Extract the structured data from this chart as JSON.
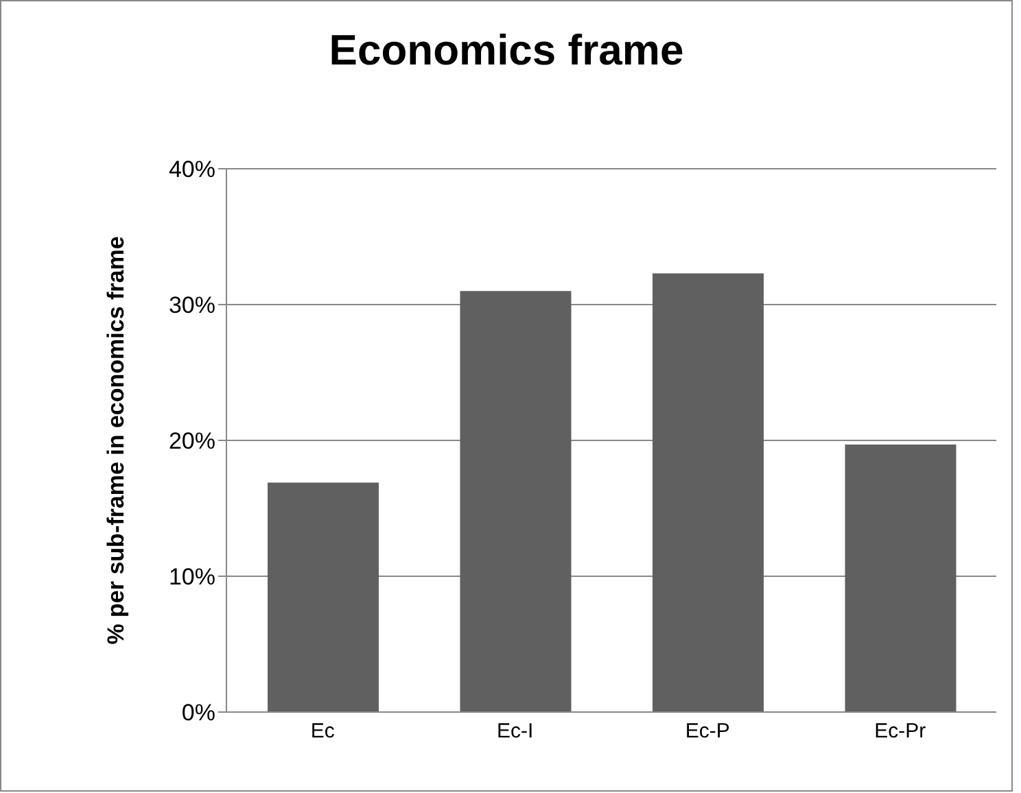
{
  "chart_data": {
    "type": "bar",
    "title": "Economics frame",
    "ylabel": "% per sub-frame in economics frame",
    "categories": [
      "Ec",
      "Ec-I",
      "Ec-P",
      "Ec-Pr"
    ],
    "values": [
      16.9,
      31.0,
      32.3,
      19.7
    ],
    "color": "#606060",
    "ylim": [
      0,
      40
    ],
    "yticks": [
      {
        "value": 0,
        "label": "0%"
      },
      {
        "value": 10,
        "label": "10%"
      },
      {
        "value": 20,
        "label": "20%"
      },
      {
        "value": 30,
        "label": "30%"
      },
      {
        "value": 40,
        "label": "40%"
      }
    ],
    "grid": "y",
    "legend": false
  }
}
